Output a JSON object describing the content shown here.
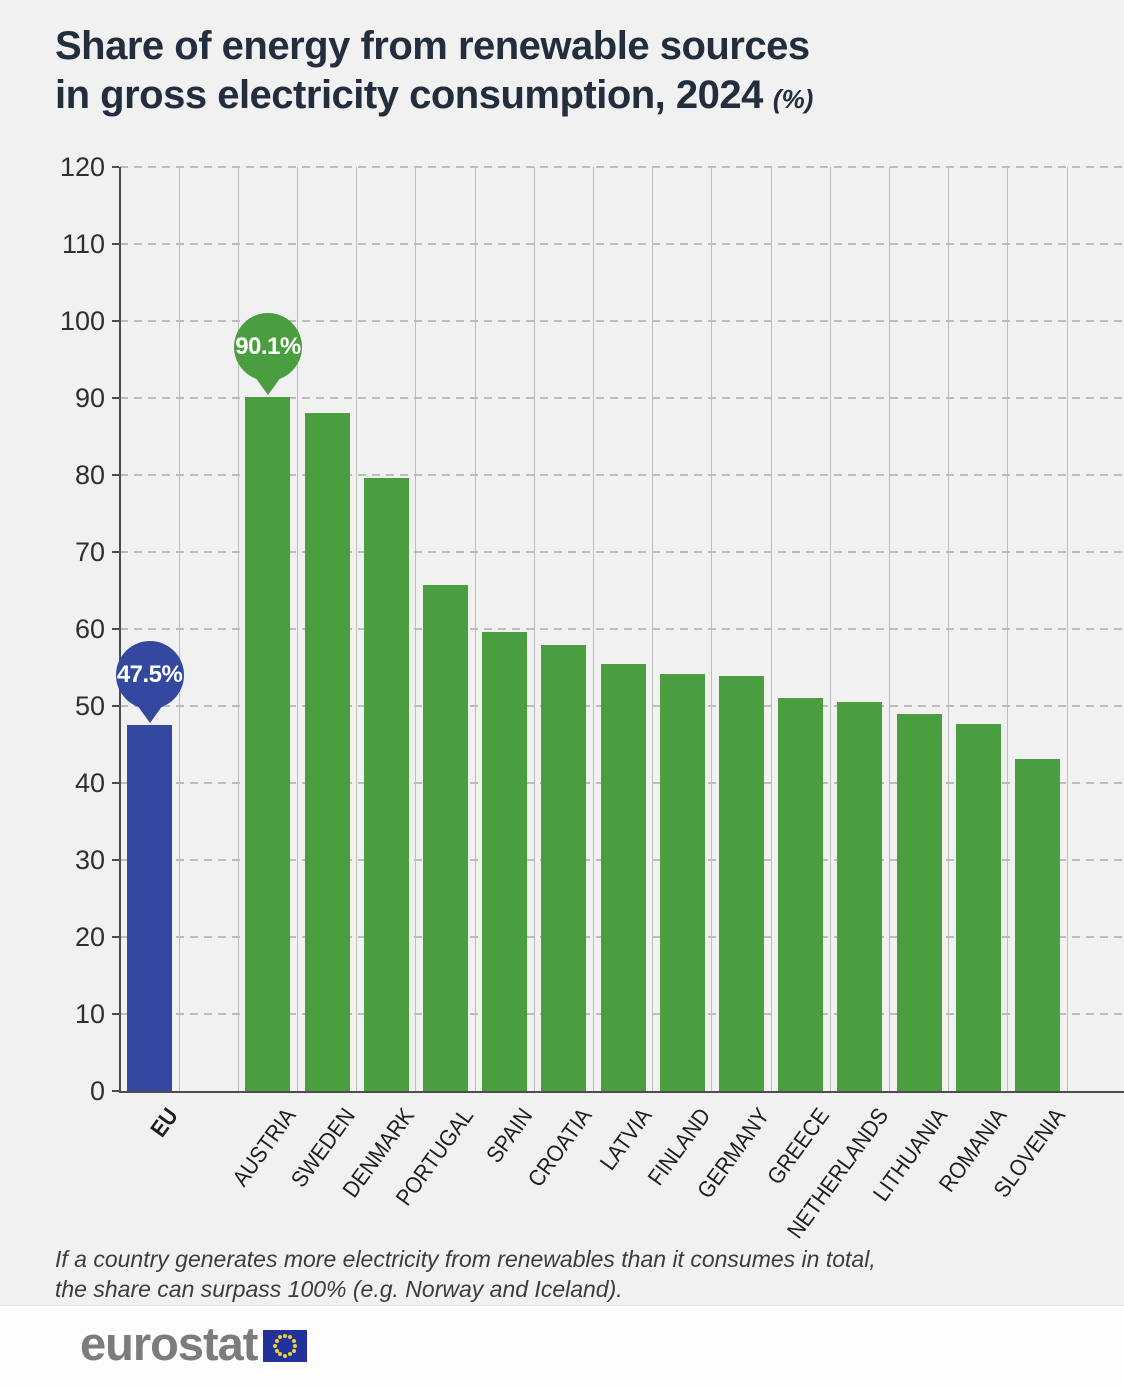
{
  "title": {
    "line1": "Share of energy from renewable sources",
    "line2": "in gross electricity consumption, 2024",
    "unit": "(%)"
  },
  "chart_data": {
    "type": "bar",
    "title": "Share of energy from renewable sources in gross electricity consumption, 2024 (%)",
    "categories": [
      "EU",
      "AUSTRIA",
      "SWEDEN",
      "DENMARK",
      "PORTUGAL",
      "SPAIN",
      "CROATIA",
      "LATVIA",
      "FINLAND",
      "GERMANY",
      "GREECE",
      "NETHERLANDS",
      "LITHUANIA",
      "ROMANIA",
      "SLOVENIA"
    ],
    "values": [
      47.5,
      90.1,
      88.1,
      79.6,
      65.7,
      59.6,
      57.9,
      55.5,
      54.1,
      53.9,
      51.1,
      50.5,
      48.9,
      47.6,
      43.1
    ],
    "data_labels": [
      {
        "category": "EU",
        "text": "47.5%"
      },
      {
        "category": "AUSTRIA",
        "text": "90.1%"
      }
    ],
    "xlabel": "",
    "ylabel": "",
    "ylim": [
      0,
      120
    ],
    "ytick_step": 10,
    "grid": "horizontal-dashed",
    "legend": "none",
    "colors": {
      "eu_bar": "#34489f",
      "country_bar": "#4b9e40"
    }
  },
  "footnote": {
    "line1": "If a country generates more electricity from renewables than it consumes in total,",
    "line2": "the share can surpass 100% (e.g. Norway and Iceland)."
  },
  "footer": {
    "logo_text": "eurostat"
  }
}
